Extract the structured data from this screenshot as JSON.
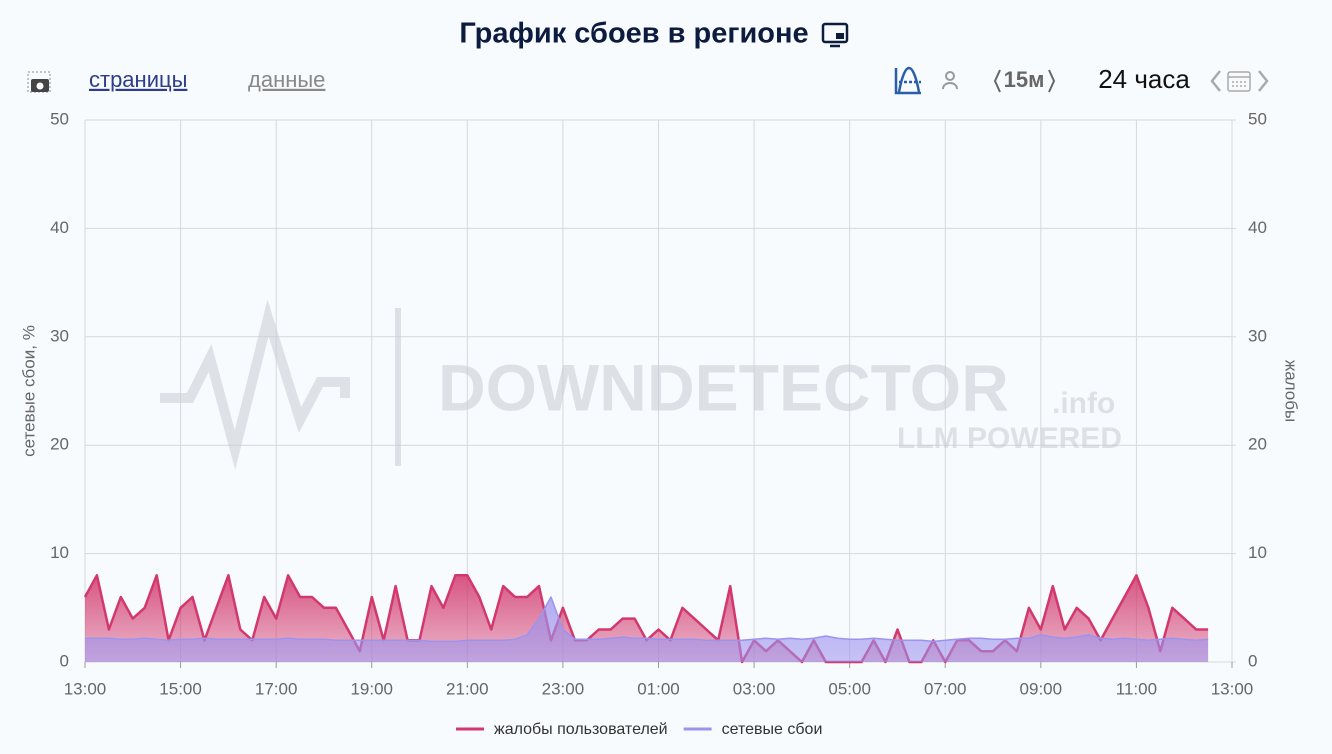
{
  "chart_data": {
    "type": "area",
    "title": "График сбоев в регионе",
    "toolbar": {
      "tabs": [
        "страницы",
        "данные"
      ],
      "interval": "15м",
      "range": "24 часа"
    },
    "watermark": {
      "brand": "DOWNDETECTOR",
      "suffix": ".info",
      "tagline": "LLM POWERED"
    },
    "ylabel": "сетевые сбои, %",
    "y2label": "жалобы",
    "xlim": [
      0,
      24
    ],
    "xticks": [
      {
        "value": 0,
        "label": "13:00"
      },
      {
        "value": 2,
        "label": "15:00"
      },
      {
        "value": 4,
        "label": "17:00"
      },
      {
        "value": 6,
        "label": "19:00"
      },
      {
        "value": 8,
        "label": "21:00"
      },
      {
        "value": 10,
        "label": "23:00"
      },
      {
        "value": 12,
        "label": "01:00"
      },
      {
        "value": 14,
        "label": "03:00"
      },
      {
        "value": 16,
        "label": "05:00"
      },
      {
        "value": 18,
        "label": "07:00"
      },
      {
        "value": 20,
        "label": "09:00"
      },
      {
        "value": 22,
        "label": "11:00"
      },
      {
        "value": 24,
        "label": "13:00"
      }
    ],
    "ylim": [
      0,
      50
    ],
    "yticks": [
      0,
      10,
      20,
      30,
      40,
      50
    ],
    "y2lim": [
      0,
      50
    ],
    "y2ticks": [
      0,
      10,
      20,
      30,
      40,
      50
    ],
    "grid": true,
    "legend": "bottom",
    "x": [
      0,
      0.25,
      0.5,
      0.75,
      1,
      1.25,
      1.5,
      1.75,
      2,
      2.25,
      2.5,
      2.75,
      3,
      3.25,
      3.5,
      3.75,
      4,
      4.25,
      4.5,
      4.75,
      5,
      5.25,
      5.5,
      5.75,
      6,
      6.25,
      6.5,
      6.75,
      7,
      7.25,
      7.5,
      7.75,
      8,
      8.25,
      8.5,
      8.75,
      9,
      9.25,
      9.5,
      9.75,
      10,
      10.25,
      10.5,
      10.75,
      11,
      11.25,
      11.5,
      11.75,
      12,
      12.25,
      12.5,
      12.75,
      13,
      13.25,
      13.5,
      13.75,
      14,
      14.25,
      14.5,
      14.75,
      15,
      15.25,
      15.5,
      15.75,
      16,
      16.25,
      16.5,
      16.75,
      17,
      17.25,
      17.5,
      17.75,
      18,
      18.25,
      18.5,
      18.75,
      19,
      19.25,
      19.5,
      19.75,
      20,
      20.25,
      20.5,
      20.75,
      21,
      21.25,
      21.5,
      21.75,
      22,
      22.25,
      22.5,
      22.75,
      23,
      23.25,
      23.5
    ],
    "series": [
      {
        "name": "жалобы пользователей",
        "color": "#d2386c",
        "axis": "y2",
        "values": [
          6,
          8,
          3,
          6,
          4,
          5,
          8,
          2,
          5,
          6,
          2,
          5,
          8,
          3,
          2,
          6,
          4,
          8,
          6,
          6,
          5,
          5,
          3,
          1,
          6,
          2,
          7,
          2,
          2,
          7,
          5,
          8,
          8,
          6,
          3,
          7,
          6,
          6,
          7,
          2,
          5,
          2,
          2,
          3,
          3,
          4,
          4,
          2,
          3,
          2,
          5,
          4,
          3,
          2,
          7,
          0,
          2,
          1,
          2,
          1,
          0,
          2,
          0,
          0,
          0,
          0,
          2,
          0,
          3,
          0,
          0,
          2,
          0,
          2,
          2,
          1,
          1,
          2,
          1,
          5,
          3,
          7,
          3,
          5,
          4,
          2,
          4,
          6,
          8,
          5,
          1,
          5,
          4,
          3,
          3
        ]
      },
      {
        "name": "сетевые сбои",
        "color": "#9d93ee",
        "values": [
          2.2,
          2.2,
          2.2,
          2.1,
          2.1,
          2.2,
          2.1,
          2,
          2.1,
          2.1,
          2.2,
          2.1,
          2.1,
          2.1,
          2.1,
          2.1,
          2.1,
          2.2,
          2.1,
          2.1,
          2.1,
          2,
          2,
          2,
          2,
          2,
          2,
          2,
          2,
          1.9,
          1.9,
          1.9,
          2,
          2,
          2,
          2,
          2.1,
          2.5,
          4,
          6,
          3,
          2.1,
          2.1,
          2.1,
          2.2,
          2.3,
          2.2,
          2.2,
          2.1,
          2.1,
          2.1,
          2.1,
          2,
          2,
          2,
          2,
          2.1,
          2.2,
          2.1,
          2.2,
          2.1,
          2.2,
          2.4,
          2.2,
          2.1,
          2.1,
          2.2,
          2.1,
          2,
          2,
          2,
          1.9,
          2,
          2.1,
          2.2,
          2.2,
          2.1,
          2.1,
          2.2,
          2.2,
          2.5,
          2.3,
          2.2,
          2.3,
          2.5,
          2.2,
          2.1,
          2.2,
          2.1,
          2,
          2.1,
          2.2,
          2.1,
          2,
          2.1
        ]
      }
    ]
  }
}
